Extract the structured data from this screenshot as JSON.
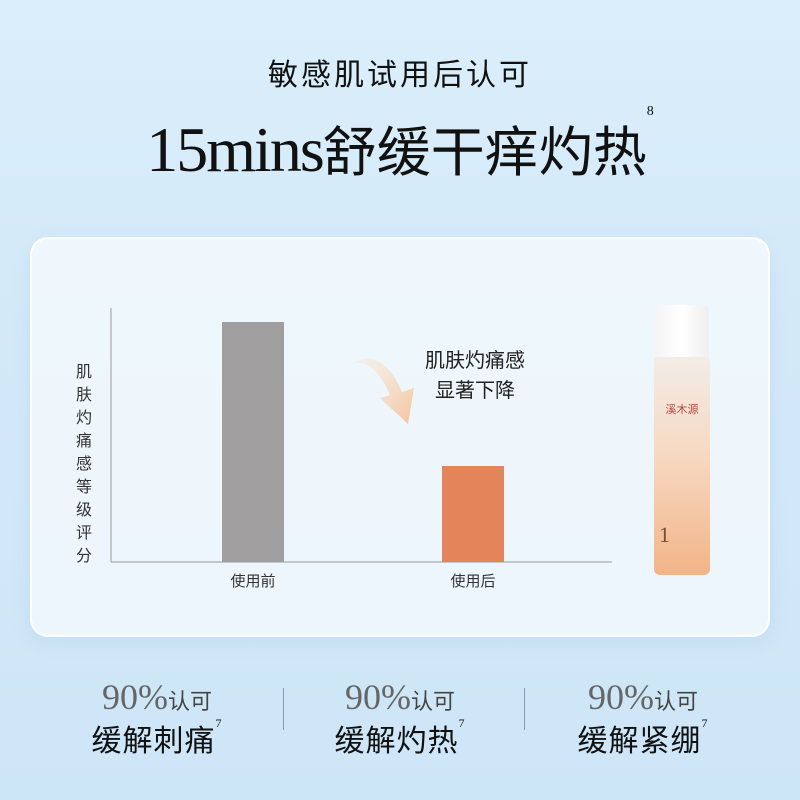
{
  "header": {
    "subtitle": "敏感肌试用后认可",
    "title_num": "15mins",
    "title_text": "舒缓干痒灼热",
    "title_note": "8"
  },
  "chart_data": {
    "type": "bar",
    "categories": [
      "使用前",
      "使用后"
    ],
    "values": [
      100,
      40
    ],
    "ylabel": "肌肤灼痛感等级评分",
    "xlabel": "",
    "annotation": "肌肤灼痛感显著下降",
    "annotation_lines": [
      "肌肤灼痛感",
      "显著下降"
    ],
    "colors": [
      "#a09e9e",
      "#e3845a"
    ],
    "grid": false
  },
  "product": {
    "brand": "溪木源",
    "mark": "1"
  },
  "stats": [
    {
      "pct": "90%",
      "ok": "认可",
      "desc": "缓解刺痛",
      "note": "7"
    },
    {
      "pct": "90%",
      "ok": "认可",
      "desc": "缓解灼热",
      "note": "7"
    },
    {
      "pct": "90%",
      "ok": "认可",
      "desc": "缓解紧绷",
      "note": "7"
    }
  ]
}
